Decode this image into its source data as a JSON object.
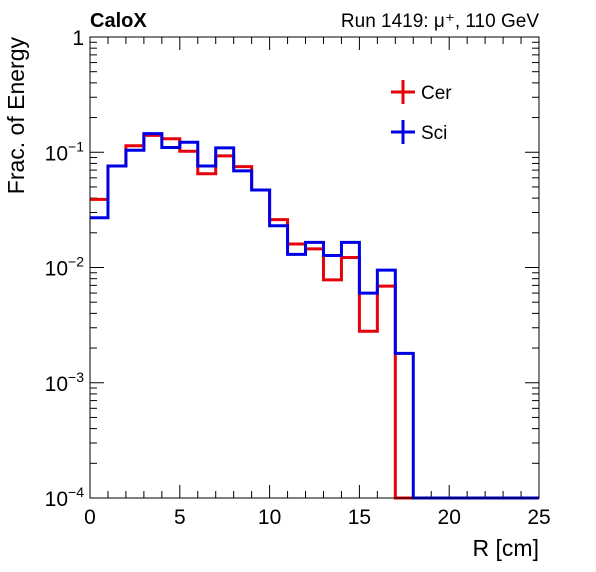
{
  "chart_data": {
    "type": "line",
    "style": "step-histogram",
    "label_left": "CaloX",
    "label_right": "Run 1419: μ⁺, 110 GeV",
    "xlabel": "R [cm]",
    "ylabel": "Frac. of Energy",
    "xlim": [
      0,
      25
    ],
    "ylim": [
      0.0001,
      1
    ],
    "yscale": "log",
    "grid": false,
    "legend_position": "top-right",
    "x_ticks": [
      "0",
      "5",
      "10",
      "15",
      "20",
      "25"
    ],
    "y_ticks": [
      {
        "base": "1",
        "exp": ""
      },
      {
        "base": "10",
        "exp": "−1"
      },
      {
        "base": "10",
        "exp": "−2"
      },
      {
        "base": "10",
        "exp": "−3"
      },
      {
        "base": "10",
        "exp": "−4"
      }
    ],
    "bin_edges": [
      0,
      1,
      2,
      3,
      4,
      5,
      6,
      7,
      8,
      9,
      10,
      11,
      12,
      13,
      14,
      15,
      16,
      17,
      18,
      19,
      20,
      21,
      22,
      23,
      24,
      25
    ],
    "series": [
      {
        "name": "Cer",
        "color": "#e8000b",
        "values": [
          0.039,
          0.076,
          0.114,
          0.14,
          0.131,
          0.102,
          0.065,
          0.093,
          0.075,
          0.047,
          0.026,
          0.016,
          0.0145,
          0.0078,
          0.0122,
          0.0028,
          0.0069,
          0.0001,
          0.0001,
          0.0001,
          0.0001,
          0.0001,
          0.0001,
          0.0001,
          0.0001
        ]
      },
      {
        "name": "Sci",
        "color": "#0000e6",
        "values": [
          0.027,
          0.076,
          0.104,
          0.145,
          0.11,
          0.122,
          0.076,
          0.109,
          0.069,
          0.047,
          0.023,
          0.013,
          0.0165,
          0.0127,
          0.0165,
          0.006,
          0.0095,
          0.0018,
          0.0001,
          0.0001,
          0.0001,
          0.0001,
          0.0001,
          0.0001,
          0.0001
        ]
      }
    ]
  }
}
